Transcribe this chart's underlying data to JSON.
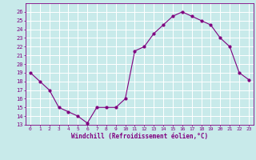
{
  "x": [
    0,
    1,
    2,
    3,
    4,
    5,
    6,
    7,
    8,
    9,
    10,
    11,
    12,
    13,
    14,
    15,
    16,
    17,
    18,
    19,
    20,
    21,
    22,
    23
  ],
  "y": [
    19,
    18,
    17,
    15,
    14.5,
    14,
    13.2,
    15,
    15,
    15,
    16,
    21.5,
    22,
    23.5,
    24.5,
    25.5,
    26,
    25.5,
    25,
    24.5,
    23,
    22,
    19,
    18.2
  ],
  "line_color": "#800080",
  "marker_color": "#800080",
  "bg_color": "#c8eaea",
  "grid_color": "#ffffff",
  "xlabel": "Windchill (Refroidissement éolien,°C)",
  "xlabel_color": "#800080",
  "tick_color": "#800080",
  "spine_color": "#800080",
  "ylim": [
    13,
    27
  ],
  "xlim": [
    -0.5,
    23.5
  ],
  "yticks": [
    13,
    14,
    15,
    16,
    17,
    18,
    19,
    20,
    21,
    22,
    23,
    24,
    25,
    26
  ],
  "xticks": [
    0,
    1,
    2,
    3,
    4,
    5,
    6,
    7,
    8,
    9,
    10,
    11,
    12,
    13,
    14,
    15,
    16,
    17,
    18,
    19,
    20,
    21,
    22,
    23
  ]
}
